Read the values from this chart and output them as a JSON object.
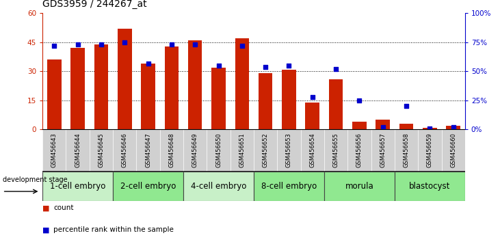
{
  "title": "GDS3959 / 244267_at",
  "samples": [
    "GSM456643",
    "GSM456644",
    "GSM456645",
    "GSM456646",
    "GSM456647",
    "GSM456648",
    "GSM456649",
    "GSM456650",
    "GSM456651",
    "GSM456652",
    "GSM456653",
    "GSM456654",
    "GSM456655",
    "GSM456656",
    "GSM456657",
    "GSM456658",
    "GSM456659",
    "GSM456660"
  ],
  "counts": [
    36,
    42,
    44,
    52,
    34,
    43,
    46,
    32,
    47,
    29,
    31,
    14,
    26,
    4,
    5,
    3,
    1,
    2
  ],
  "percentiles": [
    72,
    73,
    73,
    75,
    57,
    73,
    73,
    55,
    72,
    54,
    55,
    28,
    52,
    25,
    2,
    20,
    1,
    2
  ],
  "stages": [
    {
      "label": "1-cell embryo",
      "start": 0,
      "end": 3
    },
    {
      "label": "2-cell embryo",
      "start": 3,
      "end": 6
    },
    {
      "label": "4-cell embryo",
      "start": 6,
      "end": 9
    },
    {
      "label": "8-cell embryo",
      "start": 9,
      "end": 12
    },
    {
      "label": "morula",
      "start": 12,
      "end": 15
    },
    {
      "label": "blastocyst",
      "start": 15,
      "end": 18
    }
  ],
  "stage_colors": [
    "#c8f0c8",
    "#90e890",
    "#c8f0c8",
    "#90e890",
    "#90e890",
    "#90e890"
  ],
  "ylim_left": [
    0,
    60
  ],
  "ylim_right": [
    0,
    100
  ],
  "yticks_left": [
    0,
    15,
    30,
    45,
    60
  ],
  "ytick_labels_left": [
    "0",
    "15",
    "30",
    "45",
    "60"
  ],
  "yticks_right": [
    0,
    25,
    50,
    75,
    100
  ],
  "ytick_labels_right": [
    "0%",
    "25%",
    "50%",
    "75%",
    "100%"
  ],
  "bar_color": "#cc2200",
  "dot_color": "#0000cc",
  "label_bg_color": "#d0d0d0",
  "title_fontsize": 10,
  "tick_fontsize": 7.5,
  "label_fontsize": 6,
  "stage_fontsize": 8.5
}
